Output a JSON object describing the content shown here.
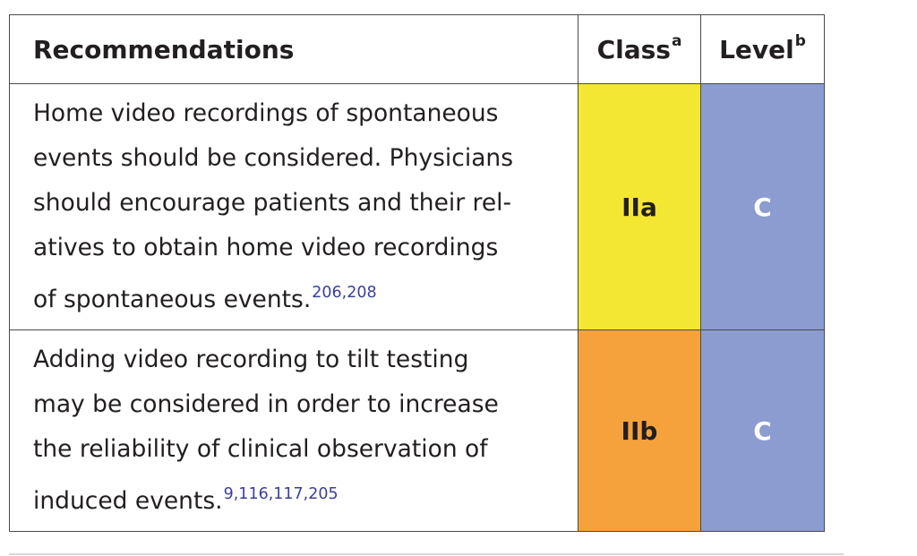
{
  "table": {
    "headers": {
      "recommendations": "Recommendations",
      "class": "Class",
      "class_sup": "a",
      "level": "Level",
      "level_sup": "b"
    },
    "rows": [
      {
        "text": "Home video recordings of spontaneous events should be considered. Physicians should encourage patients and their relatives to obtain home video recordings of spontaneous events.",
        "text_lines": [
          "Home video recordings of spontaneous",
          "events should be considered. Physicians",
          "should encourage patients and their rel-",
          "atives to obtain home video recordings",
          "of spontaneous events."
        ],
        "refs": "206,208",
        "class": "IIa",
        "class_color": "#f3e733",
        "level": "C",
        "level_color": "#8c9cd0"
      },
      {
        "text": "Adding video recording to tilt testing may be considered in order to increase the reliability of clinical observation of induced events.",
        "text_lines": [
          "Adding video recording to tilt testing",
          "may be considered in order to increase",
          "the reliability of clinical observation of",
          "induced events."
        ],
        "refs": "9,116,117,205",
        "class": "IIb",
        "class_color": "#f6a23c",
        "level": "C",
        "level_color": "#8c9cd0"
      }
    ]
  }
}
